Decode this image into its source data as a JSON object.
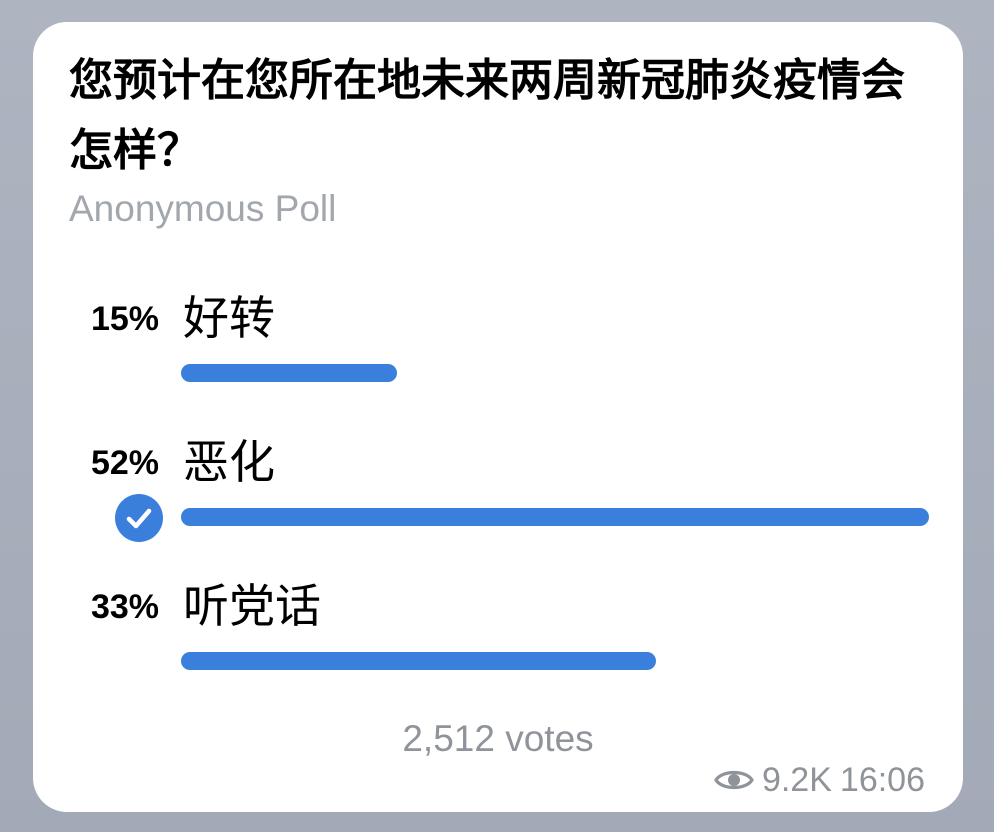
{
  "poll": {
    "question": "您预计在您所在地未来两周新冠肺炎疫情会怎样？",
    "type_label": "Anonymous Poll",
    "options": [
      {
        "percent_label": "15%",
        "label": "好转",
        "share": 0.15,
        "selected": false
      },
      {
        "percent_label": "52%",
        "label": "恶化",
        "share": 0.52,
        "selected": true
      },
      {
        "percent_label": "33%",
        "label": "听党话",
        "share": 0.33,
        "selected": false
      }
    ],
    "votes_label": "2,512 votes"
  },
  "meta": {
    "views": "9.2K",
    "time": "16:06"
  },
  "icons": {
    "check": "check-icon",
    "views": "eye-icon"
  },
  "colors": {
    "accent": "#3b7fdd",
    "muted_text": "#8f939a",
    "background": "#a7aebb"
  }
}
